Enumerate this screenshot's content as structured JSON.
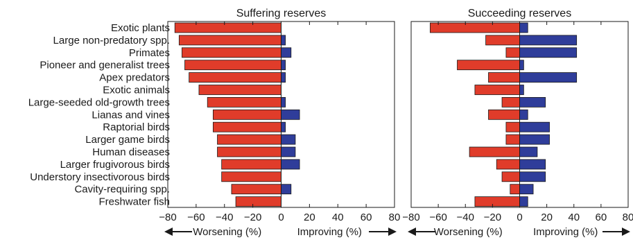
{
  "colors": {
    "worsening": "#e03c2a",
    "improving": "#2f3d9a",
    "stroke": "#1a1a1a"
  },
  "categories": [
    "Exotic plants",
    "Large non-predatory spp.",
    "Primates",
    "Pioneer and generalist trees",
    "Apex predators",
    "Exotic animals",
    "Large-seeded old-growth trees",
    "Lianas and vines",
    "Raptorial birds",
    "Larger game birds",
    "Human diseases",
    "Larger frugivorous birds",
    "Understory insectivorous birds",
    "Cavity-requiring spp.",
    "Freshwater fish"
  ],
  "direction_labels": {
    "worsening": "Worsening (%)",
    "improving": "Improving (%)"
  },
  "chart_data": [
    {
      "type": "bar",
      "orientation": "horizontal",
      "title": "Suffering reserves",
      "xlim": [
        -80,
        80
      ],
      "xticks": [
        -80,
        -60,
        -40,
        -20,
        0,
        20,
        40,
        60,
        80
      ],
      "grid": false,
      "categories": [
        "Exotic plants",
        "Large non-predatory spp.",
        "Primates",
        "Pioneer and generalist trees",
        "Apex predators",
        "Exotic animals",
        "Large-seeded old-growth trees",
        "Lianas and vines",
        "Raptorial birds",
        "Larger game birds",
        "Human diseases",
        "Larger frugivorous birds",
        "Understory insectivorous birds",
        "Cavity-requiring spp.",
        "Freshwater fish"
      ],
      "series": [
        {
          "values": [
            -75,
            -72,
            -70,
            -68,
            -65,
            -58,
            -52,
            -48,
            -48,
            -45,
            -45,
            -42,
            -42,
            -35,
            -32
          ]
        },
        {
          "values": [
            0,
            3,
            7,
            3,
            3,
            0,
            3,
            13,
            3,
            10,
            10,
            13,
            0,
            7,
            0
          ]
        }
      ]
    },
    {
      "type": "bar",
      "orientation": "horizontal",
      "title": "Succeeding reserves",
      "xlim": [
        -80,
        80
      ],
      "xticks": [
        -80,
        -60,
        -40,
        -20,
        0,
        20,
        40,
        60,
        80
      ],
      "grid": false,
      "categories": [
        "Exotic plants",
        "Large non-predatory spp.",
        "Primates",
        "Pioneer and generalist trees",
        "Apex predators",
        "Exotic animals",
        "Large-seeded old-growth trees",
        "Lianas and vines",
        "Raptorial birds",
        "Larger game birds",
        "Human diseases",
        "Larger frugivorous birds",
        "Understory insectivorous birds",
        "Cavity-requiring spp.",
        "Freshwater fish"
      ],
      "series": [
        {
          "values": [
            -66,
            -25,
            -10,
            -46,
            -23,
            -33,
            -13,
            -23,
            -10,
            -10,
            -37,
            -17,
            -13,
            -7,
            -33
          ]
        },
        {
          "values": [
            6,
            42,
            42,
            3,
            42,
            3,
            19,
            6,
            22,
            22,
            13,
            19,
            19,
            10,
            6
          ]
        }
      ]
    }
  ]
}
